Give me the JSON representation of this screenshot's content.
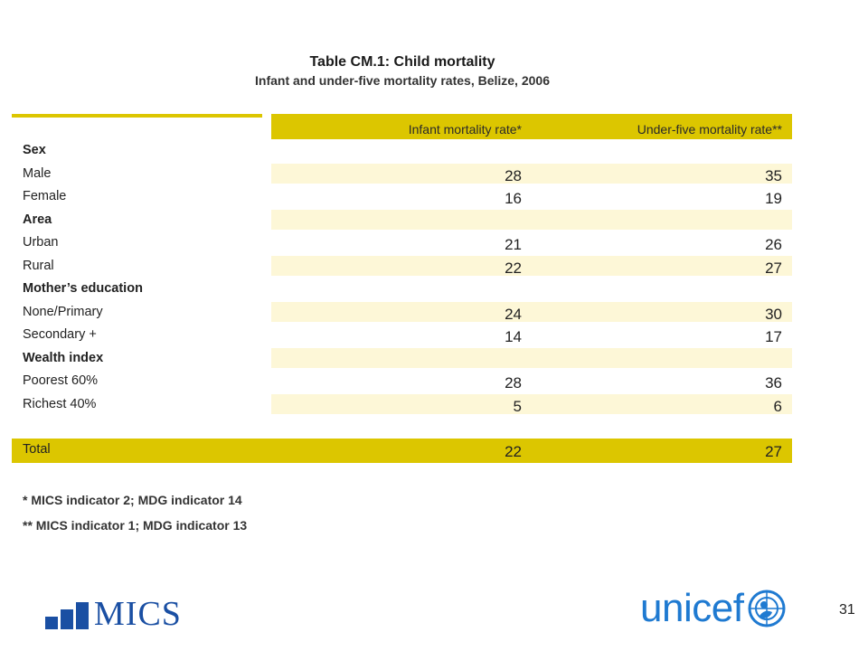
{
  "title": "Table CM.1: Child mortality",
  "subtitle": "Infant and under-five mortality rates, Belize, 2006",
  "columns": [
    "Infant mortality rate*",
    "Under-five mortality rate**"
  ],
  "rows": [
    {
      "label": "Sex",
      "section": true,
      "v1": "",
      "v2": "",
      "band": false
    },
    {
      "label": "Male",
      "section": false,
      "v1": "28",
      "v2": "35",
      "band": true
    },
    {
      "label": "Female",
      "section": false,
      "v1": "16",
      "v2": "19",
      "band": false
    },
    {
      "label": "Area",
      "section": true,
      "v1": "",
      "v2": "",
      "band": true
    },
    {
      "label": "Urban",
      "section": false,
      "v1": "21",
      "v2": "26",
      "band": false
    },
    {
      "label": "Rural",
      "section": false,
      "v1": "22",
      "v2": "27",
      "band": true
    },
    {
      "label": "Mother’s education",
      "section": true,
      "v1": "",
      "v2": "",
      "band": false
    },
    {
      "label": "None/Primary",
      "section": false,
      "v1": "24",
      "v2": "30",
      "band": true
    },
    {
      "label": "Secondary +",
      "section": false,
      "v1": "14",
      "v2": "17",
      "band": false
    },
    {
      "label": "Wealth index",
      "section": true,
      "v1": "",
      "v2": "",
      "band": true
    },
    {
      "label": "Poorest 60%",
      "section": false,
      "v1": "28",
      "v2": "36",
      "band": false
    },
    {
      "label": "Richest 40%",
      "section": false,
      "v1": "5",
      "v2": "6",
      "band": true
    }
  ],
  "total": {
    "label": "Total",
    "v1": "22",
    "v2": "27"
  },
  "footnotes": [
    "* MICS indicator 2; MDG indicator 14",
    "** MICS indicator 1; MDG indicator 13"
  ],
  "logos": {
    "left": "MICS",
    "right": "unicef"
  },
  "page_number": "31",
  "colors": {
    "header": "#dcc600",
    "band": "#fdf7d7",
    "logo_mics": "#1a4fa3",
    "logo_unicef": "#1f7ad1"
  }
}
